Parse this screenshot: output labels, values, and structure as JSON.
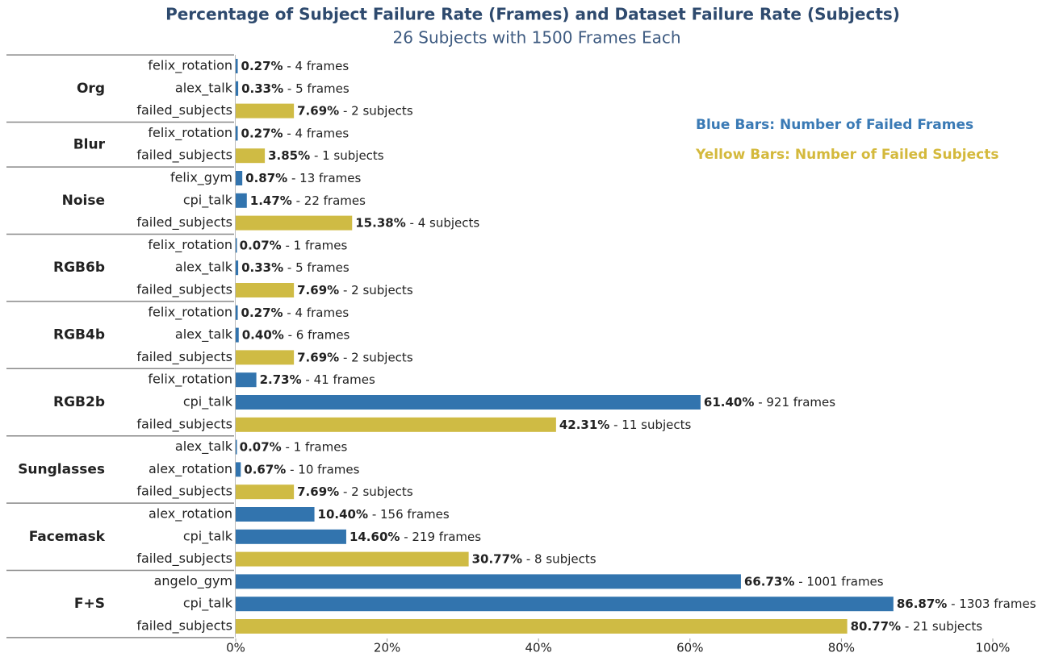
{
  "chart_data": {
    "type": "bar",
    "orientation": "horizontal",
    "title": "Percentage of Subject Failure Rate (Frames) and Dataset Failure Rate (Subjects)",
    "subtitle": "26 Subjects with 1500 Frames Each",
    "legend": [
      {
        "label": "Blue Bars: Number of Failed Frames",
        "color": "#3a7ab5"
      },
      {
        "label": "Yellow Bars: Number of Failed Subjects",
        "color": "#d4b93c"
      }
    ],
    "xlim": [
      0,
      100
    ],
    "xticks": [
      {
        "value": 0,
        "label": "0%"
      },
      {
        "value": 20,
        "label": "20%"
      },
      {
        "value": 40,
        "label": "40%"
      },
      {
        "value": 60,
        "label": "60%"
      },
      {
        "value": 80,
        "label": "80%"
      },
      {
        "value": 100,
        "label": "100%"
      }
    ],
    "groups": [
      {
        "name": "Org",
        "categories": [
          "felix_rotation",
          "alex_talk",
          "failed_subjects"
        ],
        "values": [
          0.27,
          0.33,
          7.69
        ],
        "value_labels": [
          "0.27%",
          "0.33%",
          "7.69%"
        ],
        "details": [
          "- 4 frames",
          "- 5 frames",
          "- 2 subjects"
        ],
        "colors": [
          "#3274ae",
          "#3274ae",
          "#cfbb44"
        ]
      },
      {
        "name": "Blur",
        "categories": [
          "felix_rotation",
          "failed_subjects"
        ],
        "values": [
          0.27,
          3.85
        ],
        "value_labels": [
          "0.27%",
          "3.85%"
        ],
        "details": [
          "- 4 frames",
          "- 1 subjects"
        ],
        "colors": [
          "#3274ae",
          "#cfbb44"
        ]
      },
      {
        "name": "Noise",
        "categories": [
          "felix_gym",
          "cpi_talk",
          "failed_subjects"
        ],
        "values": [
          0.87,
          1.47,
          15.38
        ],
        "value_labels": [
          "0.87%",
          "1.47%",
          "15.38%"
        ],
        "details": [
          "- 13 frames",
          "- 22 frames",
          "- 4 subjects"
        ],
        "colors": [
          "#3274ae",
          "#3274ae",
          "#cfbb44"
        ]
      },
      {
        "name": "RGB6b",
        "categories": [
          "felix_rotation",
          "alex_talk",
          "failed_subjects"
        ],
        "values": [
          0.07,
          0.33,
          7.69
        ],
        "value_labels": [
          "0.07%",
          "0.33%",
          "7.69%"
        ],
        "details": [
          "- 1 frames",
          "- 5 frames",
          "- 2 subjects"
        ],
        "colors": [
          "#3274ae",
          "#3274ae",
          "#cfbb44"
        ]
      },
      {
        "name": "RGB4b",
        "categories": [
          "felix_rotation",
          "alex_talk",
          "failed_subjects"
        ],
        "values": [
          0.27,
          0.4,
          7.69
        ],
        "value_labels": [
          "0.27%",
          "0.40%",
          "7.69%"
        ],
        "details": [
          "- 4 frames",
          "- 6 frames",
          "- 2 subjects"
        ],
        "colors": [
          "#3274ae",
          "#3274ae",
          "#cfbb44"
        ]
      },
      {
        "name": "RGB2b",
        "categories": [
          "felix_rotation",
          "cpi_talk",
          "failed_subjects"
        ],
        "values": [
          2.73,
          61.4,
          42.31
        ],
        "value_labels": [
          "2.73%",
          "61.40%",
          "42.31%"
        ],
        "details": [
          "- 41 frames",
          "- 921 frames",
          "- 11 subjects"
        ],
        "colors": [
          "#3274ae",
          "#3274ae",
          "#cfbb44"
        ]
      },
      {
        "name": "Sunglasses",
        "categories": [
          "alex_talk",
          "alex_rotation",
          "failed_subjects"
        ],
        "values": [
          0.07,
          0.67,
          7.69
        ],
        "value_labels": [
          "0.07%",
          "0.67%",
          "7.69%"
        ],
        "details": [
          "- 1 frames",
          "- 10 frames",
          "- 2 subjects"
        ],
        "colors": [
          "#3274ae",
          "#3274ae",
          "#cfbb44"
        ]
      },
      {
        "name": "Facemask",
        "categories": [
          "alex_rotation",
          "cpi_talk",
          "failed_subjects"
        ],
        "values": [
          10.4,
          14.6,
          30.77
        ],
        "value_labels": [
          "10.40%",
          "14.60%",
          "30.77%"
        ],
        "details": [
          "- 156 frames",
          "- 219 frames",
          "- 8 subjects"
        ],
        "colors": [
          "#3274ae",
          "#3274ae",
          "#cfbb44"
        ]
      },
      {
        "name": "F+S",
        "categories": [
          "angelo_gym",
          "cpi_talk",
          "failed_subjects"
        ],
        "values": [
          66.73,
          86.87,
          80.77
        ],
        "value_labels": [
          "66.73%",
          "86.87%",
          "80.77%"
        ],
        "details": [
          "- 1001 frames",
          "- 1303 frames",
          "- 21 subjects"
        ],
        "colors": [
          "#3274ae",
          "#3274ae",
          "#cfbb44"
        ]
      }
    ]
  }
}
